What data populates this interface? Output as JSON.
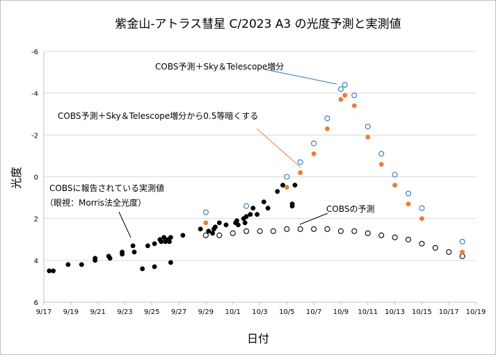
{
  "chart_data": {
    "type": "scatter",
    "title": "紫金山-アトラス彗星  C/2023 A3  の光度予測と実測値",
    "xlabel": "日付",
    "ylabel": "光度",
    "x_ticks": [
      "9/17",
      "9/19",
      "9/21",
      "9/23",
      "9/25",
      "9/27",
      "9/29",
      "10/1",
      "10/3",
      "10/5",
      "10/7",
      "10/9",
      "10/11",
      "10/13",
      "10/15",
      "10/17",
      "10/19"
    ],
    "xlim": [
      "9/17",
      "10/19"
    ],
    "y_ticks": [
      "-6",
      "-4",
      "-2",
      "0",
      "2",
      "4",
      "6"
    ],
    "ylim": [
      6,
      -6
    ],
    "y_inverted": true,
    "grid": "horizontal",
    "series": [
      {
        "name": "COBSに報告されている実測値（眼視：Morris法全光度）",
        "marker": "filled-circle",
        "color": "#000000",
        "points": [
          [
            "9/17.4",
            4.5
          ],
          [
            "9/17.7",
            4.5
          ],
          [
            "9/18.8",
            4.2
          ],
          [
            "9/19.8",
            4.2
          ],
          [
            "9/20.8",
            3.9
          ],
          [
            "9/20.8",
            4.0
          ],
          [
            "9/21.8",
            3.8
          ],
          [
            "9/21.9",
            3.9
          ],
          [
            "9/22.8",
            3.6
          ],
          [
            "9/22.8",
            3.7
          ],
          [
            "9/23.6",
            3.3
          ],
          [
            "9/23.7",
            3.6
          ],
          [
            "9/24.3",
            4.4
          ],
          [
            "9/24.7",
            3.3
          ],
          [
            "9/25.2",
            3.2
          ],
          [
            "9/25.2",
            4.3
          ],
          [
            "9/25.6",
            3.0
          ],
          [
            "9/25.7",
            3.1
          ],
          [
            "9/25.9",
            2.9
          ],
          [
            "9/26.0",
            3.1
          ],
          [
            "9/26.2",
            3.0
          ],
          [
            "9/26.3",
            3.1
          ],
          [
            "9/26.4",
            2.9
          ],
          [
            "9/26.4",
            4.1
          ],
          [
            "9/27.3",
            2.8
          ],
          [
            "9/28.6",
            2.5
          ],
          [
            "9/29.2",
            2.6
          ],
          [
            "9/29.5",
            2.7
          ],
          [
            "9/29.6",
            2.5
          ],
          [
            "9/29.7",
            2.4
          ],
          [
            "9/30.0",
            2.2
          ],
          [
            "9/30.5",
            2.3
          ],
          [
            "10/1.2",
            2.2
          ],
          [
            "10/1.3",
            2.1
          ],
          [
            "10/1.4",
            2.3
          ],
          [
            "10/1.8",
            2.0
          ],
          [
            "10/1.9",
            2.2
          ],
          [
            "10/2.0",
            1.9
          ],
          [
            "10/2.3",
            1.8
          ],
          [
            "10/2.5",
            1.5
          ],
          [
            "10/2.8",
            1.8
          ],
          [
            "10/3.3",
            1.2
          ],
          [
            "10/3.6",
            1.5
          ],
          [
            "10/4.3",
            0.7
          ],
          [
            "10/4.7",
            0.4
          ],
          [
            "10/5.4",
            1.3
          ],
          [
            "10/5.4",
            1.4
          ],
          [
            "10/5.6",
            0.4
          ]
        ]
      },
      {
        "name": "COBSの予測",
        "marker": "open-circle",
        "color": "#000000",
        "points": [
          [
            "9/29",
            2.8
          ],
          [
            "9/30",
            2.8
          ],
          [
            "10/1",
            2.7
          ],
          [
            "10/2",
            2.6
          ],
          [
            "10/3",
            2.6
          ],
          [
            "10/4",
            2.6
          ],
          [
            "10/5",
            2.5
          ],
          [
            "10/6",
            2.5
          ],
          [
            "10/7",
            2.5
          ],
          [
            "10/8",
            2.5
          ],
          [
            "10/9",
            2.6
          ],
          [
            "10/10",
            2.6
          ],
          [
            "10/11",
            2.7
          ],
          [
            "10/12",
            2.8
          ],
          [
            "10/13",
            2.9
          ],
          [
            "10/14",
            3.0
          ],
          [
            "10/15",
            3.2
          ],
          [
            "10/16",
            3.4
          ],
          [
            "10/17",
            3.6
          ],
          [
            "10/18",
            3.8
          ]
        ]
      },
      {
        "name": "COBS予測＋Sky＆Telescope増分",
        "marker": "open-circle",
        "color": "#2e75b6",
        "points": [
          [
            "9/29",
            1.7
          ],
          [
            "10/2",
            1.4
          ],
          [
            "10/5",
            0.0
          ],
          [
            "10/6",
            -0.7
          ],
          [
            "10/7",
            -1.6
          ],
          [
            "10/8",
            -2.8
          ],
          [
            "10/9",
            -4.2
          ],
          [
            "10/9.3",
            -4.4
          ],
          [
            "10/10",
            -3.9
          ],
          [
            "10/11",
            -2.4
          ],
          [
            "10/12",
            -1.1
          ],
          [
            "10/13",
            -0.1
          ],
          [
            "10/14",
            0.8
          ],
          [
            "10/15",
            1.5
          ],
          [
            "10/18",
            3.1
          ]
        ]
      },
      {
        "name": "COBS予測＋Sky＆Telescope増分から0.5等暗くする",
        "marker": "filled-circle",
        "color": "#ed7d31",
        "points": [
          [
            "9/29",
            2.2
          ],
          [
            "10/2",
            1.9
          ],
          [
            "10/5",
            0.5
          ],
          [
            "10/6",
            -0.2
          ],
          [
            "10/7",
            -1.1
          ],
          [
            "10/8",
            -2.3
          ],
          [
            "10/9",
            -3.7
          ],
          [
            "10/9.3",
            -3.9
          ],
          [
            "10/10",
            -3.4
          ],
          [
            "10/11",
            -1.9
          ],
          [
            "10/12",
            -0.6
          ],
          [
            "10/13",
            0.4
          ],
          [
            "10/14",
            1.3
          ],
          [
            "10/15",
            2.0
          ],
          [
            "10/18",
            3.6
          ]
        ]
      }
    ],
    "annotations": [
      {
        "text": "COBS予測＋Sky＆Telescope増分"
      },
      {
        "text": "COBS予測＋Sky＆Telescope増分から0.5等暗くする"
      },
      {
        "text_lines": [
          "COBSに報告されている実測値",
          "（眼視：Morris法全光度）"
        ]
      },
      {
        "text": "COBSの予測"
      }
    ]
  }
}
